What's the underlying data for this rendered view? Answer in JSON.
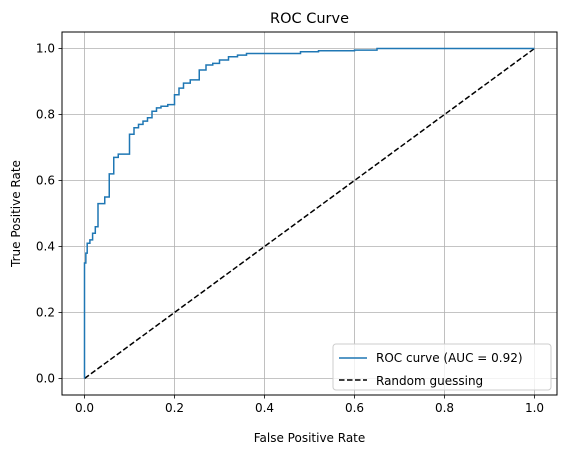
{
  "chart_data": {
    "type": "line",
    "title": "ROC Curve",
    "xlabel": "False Positive Rate",
    "ylabel": "True Positive Rate",
    "xlim": [
      -0.05,
      1.05
    ],
    "ylim": [
      -0.05,
      1.05
    ],
    "xticks": [
      0.0,
      0.2,
      0.4,
      0.6,
      0.8,
      1.0
    ],
    "yticks": [
      0.0,
      0.2,
      0.4,
      0.6,
      0.8,
      1.0
    ],
    "xtick_labels": [
      "0.0",
      "0.2",
      "0.4",
      "0.6",
      "0.8",
      "1.0"
    ],
    "ytick_labels": [
      "0.0",
      "0.2",
      "0.4",
      "0.6",
      "0.8",
      "1.0"
    ],
    "grid": true,
    "legend_position": "lower-right",
    "series": [
      {
        "name": "ROC curve (AUC = 0.92)",
        "color": "#1f77b4",
        "style": "solid",
        "step": true,
        "x": [
          0.0,
          0.0,
          0.003,
          0.003,
          0.006,
          0.006,
          0.012,
          0.012,
          0.018,
          0.018,
          0.024,
          0.024,
          0.03,
          0.03,
          0.036,
          0.036,
          0.045,
          0.045,
          0.055,
          0.055,
          0.065,
          0.065,
          0.075,
          0.075,
          0.085,
          0.085,
          0.1,
          0.1,
          0.11,
          0.11,
          0.12,
          0.12,
          0.13,
          0.13,
          0.14,
          0.14,
          0.15,
          0.15,
          0.16,
          0.16,
          0.17,
          0.17,
          0.185,
          0.185,
          0.2,
          0.2,
          0.21,
          0.21,
          0.22,
          0.22,
          0.235,
          0.235,
          0.255,
          0.255,
          0.27,
          0.27,
          0.285,
          0.285,
          0.3,
          0.3,
          0.32,
          0.32,
          0.34,
          0.34,
          0.36,
          0.36,
          0.48,
          0.48,
          0.52,
          0.52,
          0.6,
          0.6,
          0.65,
          0.65,
          1.0
        ],
        "y": [
          0.0,
          0.35,
          0.35,
          0.38,
          0.38,
          0.41,
          0.41,
          0.42,
          0.42,
          0.44,
          0.44,
          0.46,
          0.46,
          0.53,
          0.53,
          0.53,
          0.53,
          0.55,
          0.55,
          0.62,
          0.62,
          0.67,
          0.67,
          0.68,
          0.68,
          0.68,
          0.68,
          0.74,
          0.74,
          0.76,
          0.76,
          0.77,
          0.77,
          0.78,
          0.78,
          0.79,
          0.79,
          0.81,
          0.81,
          0.82,
          0.82,
          0.825,
          0.825,
          0.83,
          0.83,
          0.86,
          0.86,
          0.88,
          0.88,
          0.895,
          0.895,
          0.905,
          0.905,
          0.935,
          0.935,
          0.95,
          0.95,
          0.955,
          0.955,
          0.965,
          0.965,
          0.975,
          0.975,
          0.98,
          0.98,
          0.985,
          0.985,
          0.99,
          0.99,
          0.993,
          0.993,
          0.995,
          0.995,
          1.0,
          1.0
        ]
      },
      {
        "name": "Random guessing",
        "color": "#000000",
        "style": "dashed",
        "x": [
          0.0,
          1.0
        ],
        "y": [
          0.0,
          1.0
        ]
      }
    ]
  }
}
